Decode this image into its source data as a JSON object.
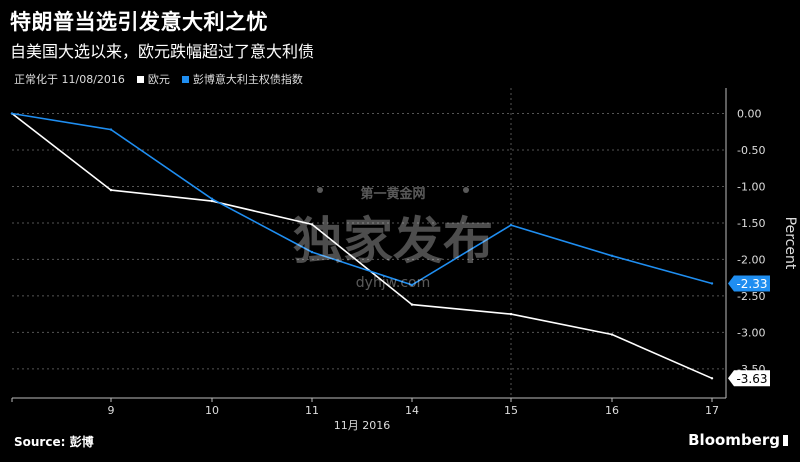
{
  "title": "特朗普当选引发意大利之忧",
  "subtitle": "自美国大选以来，欧元跌幅超过了意大利债",
  "legend": {
    "normalized": "正常化于 11/08/2016",
    "euro": "欧元",
    "btp": "彭博意大利主权债指数"
  },
  "source": "Source: 彭博",
  "brand": "Bloomberg",
  "watermark": {
    "top": "第一黄金网",
    "main": "独家发布",
    "url": "dyhjw.com"
  },
  "chart_data": {
    "type": "line",
    "x": [
      8,
      9,
      10,
      11,
      14,
      15,
      16,
      17
    ],
    "xlabels": [
      "",
      "9",
      "10",
      "11",
      "14",
      "15",
      "16",
      "17"
    ],
    "xlabel": "11月 2016",
    "ylabel": "Percent",
    "ylim": [
      -3.9,
      0.35
    ],
    "yticks": [
      "0.00",
      "-0.50",
      "-1.00",
      "-1.50",
      "-2.00",
      "-2.50",
      "-3.00",
      "-3.50"
    ],
    "yticks_values": [
      0,
      -0.5,
      -1.0,
      -1.5,
      -2.0,
      -2.5,
      -3.0,
      -3.5
    ],
    "grid": true,
    "series": [
      {
        "name": "欧元",
        "color": "#ffffff",
        "values": [
          0,
          -1.05,
          -1.2,
          -1.52,
          -2.62,
          -2.75,
          -3.03,
          -3.63
        ],
        "end_label": "-3.63"
      },
      {
        "name": "彭博意大利主权债指数",
        "color": "#1f8ef1",
        "values": [
          0,
          -0.22,
          -1.17,
          -1.9,
          -2.35,
          -1.53,
          -1.95,
          -2.33
        ],
        "end_label": "-2.33"
      }
    ]
  }
}
